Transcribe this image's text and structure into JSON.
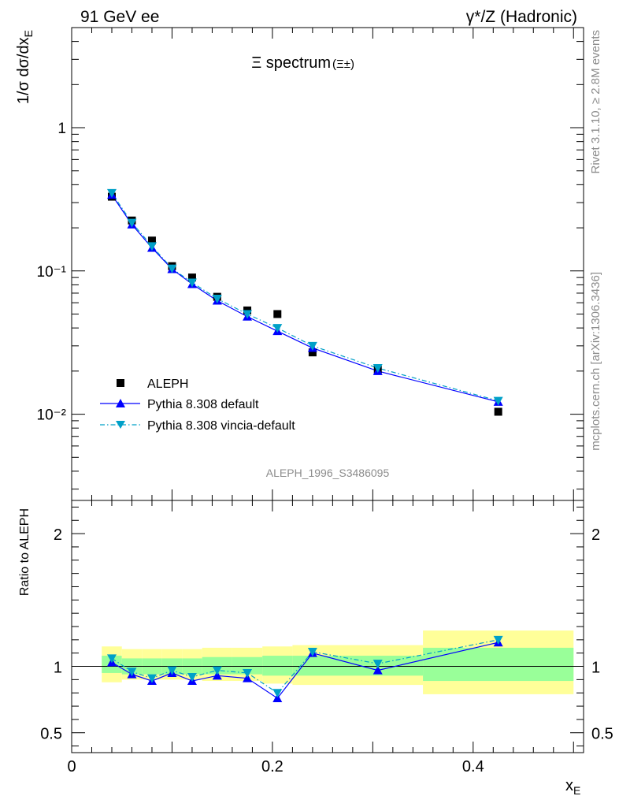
{
  "header": {
    "left": "91 GeV ee",
    "right": "γ*/Z (Hadronic)"
  },
  "side_text": {
    "rivet": "Rivet 3.1.10, ≥ 2.8M events",
    "mcplots": "mcplots.cern.ch [arXiv:1306.3436]"
  },
  "colors": {
    "data": "#000000",
    "default": "#0000ff",
    "vincia": "#00a0c8",
    "band_inner": "#99ff99",
    "band_outer": "#ffff99"
  },
  "chart_data": [
    {
      "type": "scatter",
      "title": "Ξ spectrum",
      "title_sup": "(Ξ±)",
      "analysis_label": "ALEPH_1996_S3486095",
      "xlabel": "x_E",
      "ylabel": "1/σ dσ/dx_E",
      "xlim": [
        0,
        0.51
      ],
      "ylim": [
        0.0025,
        5.0
      ],
      "yscale": "log",
      "y_ticklabels": [
        {
          "value": 1,
          "label": "1"
        },
        {
          "value": 0.1,
          "label": "10⁻¹"
        },
        {
          "value": 0.01,
          "label": "10⁻²"
        }
      ],
      "legend_position": "bottom-left",
      "series": [
        {
          "name": "ALEPH",
          "marker": "square",
          "x": [
            0.04,
            0.06,
            0.08,
            0.1,
            0.12,
            0.145,
            0.175,
            0.205,
            0.24,
            0.305,
            0.425
          ],
          "y": [
            0.33,
            0.225,
            0.163,
            0.108,
            0.09,
            0.066,
            0.053,
            0.05,
            0.027,
            0.0205,
            0.0104
          ]
        },
        {
          "name": "Pythia 8.308 default",
          "marker": "triangle-up",
          "line": "solid",
          "x": [
            0.04,
            0.06,
            0.08,
            0.1,
            0.12,
            0.145,
            0.175,
            0.205,
            0.24,
            0.305,
            0.425
          ],
          "y": [
            0.34,
            0.211,
            0.145,
            0.103,
            0.081,
            0.062,
            0.048,
            0.038,
            0.029,
            0.02,
            0.0122
          ]
        },
        {
          "name": "Pythia 8.308 vincia-default",
          "marker": "triangle-down",
          "line": "dashdot",
          "x": [
            0.04,
            0.06,
            0.08,
            0.1,
            0.12,
            0.145,
            0.175,
            0.205,
            0.24,
            0.305,
            0.425
          ],
          "y": [
            0.35,
            0.217,
            0.149,
            0.104,
            0.083,
            0.064,
            0.05,
            0.04,
            0.03,
            0.021,
            0.0124
          ]
        }
      ]
    },
    {
      "type": "scatter",
      "xlabel": "x_E",
      "ylabel": "Ratio to ALEPH",
      "xlim": [
        0,
        0.51
      ],
      "ylim": [
        0.35,
        2.25
      ],
      "x_ticks": [
        0,
        0.2,
        0.4
      ],
      "y_ticks": [
        0.5,
        1,
        2
      ],
      "bands": [
        {
          "x0": 0.03,
          "x1": 0.05,
          "inner": [
            0.95,
            1.08
          ],
          "outer": [
            0.88,
            1.15
          ]
        },
        {
          "x0": 0.05,
          "x1": 0.07,
          "inner": [
            0.94,
            1.06
          ],
          "outer": [
            0.9,
            1.13
          ]
        },
        {
          "x0": 0.07,
          "x1": 0.09,
          "inner": [
            0.94,
            1.06
          ],
          "outer": [
            0.9,
            1.13
          ]
        },
        {
          "x0": 0.09,
          "x1": 0.11,
          "inner": [
            0.94,
            1.06
          ],
          "outer": [
            0.9,
            1.13
          ]
        },
        {
          "x0": 0.11,
          "x1": 0.13,
          "inner": [
            0.94,
            1.06
          ],
          "outer": [
            0.9,
            1.13
          ]
        },
        {
          "x0": 0.13,
          "x1": 0.16,
          "inner": [
            0.94,
            1.07
          ],
          "outer": [
            0.89,
            1.14
          ]
        },
        {
          "x0": 0.16,
          "x1": 0.19,
          "inner": [
            0.94,
            1.07
          ],
          "outer": [
            0.89,
            1.14
          ]
        },
        {
          "x0": 0.19,
          "x1": 0.22,
          "inner": [
            0.93,
            1.08
          ],
          "outer": [
            0.87,
            1.15
          ]
        },
        {
          "x0": 0.22,
          "x1": 0.35,
          "inner": [
            0.93,
            1.08
          ],
          "outer": [
            0.86,
            1.16
          ]
        },
        {
          "x0": 0.35,
          "x1": 0.5,
          "inner": [
            0.89,
            1.14
          ],
          "outer": [
            0.79,
            1.27
          ]
        }
      ],
      "series": [
        {
          "name": "Pythia 8.308 default",
          "x": [
            0.04,
            0.06,
            0.08,
            0.1,
            0.12,
            0.145,
            0.175,
            0.205,
            0.24,
            0.305,
            0.425
          ],
          "y": [
            1.03,
            0.94,
            0.89,
            0.95,
            0.89,
            0.93,
            0.91,
            0.76,
            1.1,
            0.97,
            1.18
          ]
        },
        {
          "name": "Pythia 8.308 vincia-default",
          "x": [
            0.04,
            0.06,
            0.08,
            0.1,
            0.12,
            0.145,
            0.175,
            0.205,
            0.24,
            0.305,
            0.425
          ],
          "y": [
            1.06,
            0.96,
            0.91,
            0.97,
            0.92,
            0.97,
            0.95,
            0.8,
            1.11,
            1.02,
            1.2
          ]
        }
      ]
    }
  ]
}
